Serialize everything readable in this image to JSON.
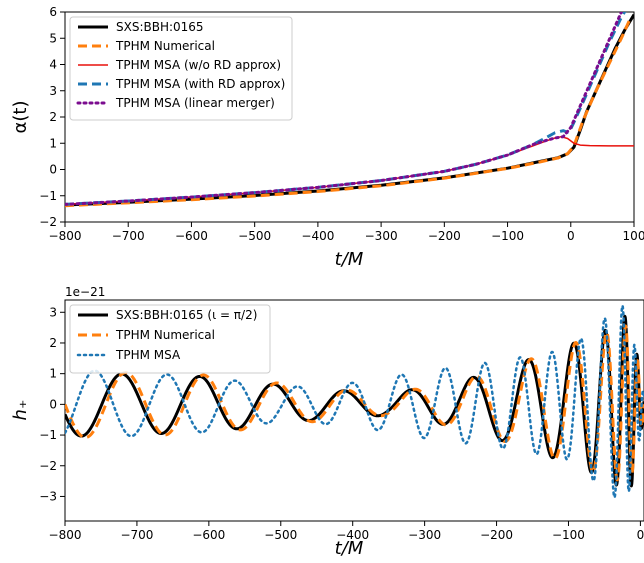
{
  "chart_data": [
    {
      "type": "line",
      "xlabel": "t/M",
      "ylabel": "α(t)",
      "xlim": [
        -800,
        100
      ],
      "ylim": [
        -2,
        6
      ],
      "xticks": [
        -800,
        -700,
        -600,
        -500,
        -400,
        -300,
        -200,
        -100,
        0,
        100
      ],
      "xtick_labels": [
        "−800",
        "−700",
        "−600",
        "−500",
        "−400",
        "−300",
        "−200",
        "−100",
        "0",
        "100"
      ],
      "yticks": [
        -2,
        -1,
        0,
        1,
        2,
        3,
        4,
        5,
        6
      ],
      "ytick_labels": [
        "−2",
        "−1",
        "0",
        "1",
        "2",
        "3",
        "4",
        "5",
        "6"
      ],
      "legend_position": "upper-left",
      "series": [
        {
          "name": "SXS:BBH:0165",
          "color": "#000000",
          "style": "solid",
          "width": 3,
          "points": [
            [
              -800,
              -1.35
            ],
            [
              -700,
              -1.25
            ],
            [
              -600,
              -1.13
            ],
            [
              -500,
              -0.99
            ],
            [
              -400,
              -0.82
            ],
            [
              -300,
              -0.6
            ],
            [
              -200,
              -0.32
            ],
            [
              -100,
              0.05
            ],
            [
              -50,
              0.3
            ],
            [
              -20,
              0.45
            ],
            [
              -5,
              0.6
            ],
            [
              5,
              0.85
            ],
            [
              15,
              1.5
            ],
            [
              25,
              2.2
            ],
            [
              40,
              3.0
            ],
            [
              55,
              3.8
            ],
            [
              70,
              4.6
            ],
            [
              85,
              5.3
            ],
            [
              100,
              5.9
            ]
          ]
        },
        {
          "name": "TPHM Numerical",
          "color": "#ff7f0e",
          "style": "dashed",
          "width": 3,
          "points": [
            [
              -800,
              -1.38
            ],
            [
              -700,
              -1.27
            ],
            [
              -600,
              -1.15
            ],
            [
              -500,
              -1.01
            ],
            [
              -400,
              -0.84
            ],
            [
              -300,
              -0.62
            ],
            [
              -200,
              -0.33
            ],
            [
              -100,
              0.04
            ],
            [
              -50,
              0.28
            ],
            [
              -20,
              0.44
            ],
            [
              -5,
              0.6
            ],
            [
              5,
              0.9
            ],
            [
              20,
              1.9
            ],
            [
              40,
              3.0
            ],
            [
              60,
              4.0
            ],
            [
              80,
              5.0
            ],
            [
              95,
              5.8
            ]
          ]
        },
        {
          "name": "TPHM MSA (w/o RD approx)",
          "color": "#e8110c",
          "style": "solid",
          "width": 1.5,
          "points": [
            [
              -800,
              -1.33
            ],
            [
              -700,
              -1.2
            ],
            [
              -600,
              -1.05
            ],
            [
              -500,
              -0.88
            ],
            [
              -400,
              -0.68
            ],
            [
              -300,
              -0.42
            ],
            [
              -200,
              -0.07
            ],
            [
              -150,
              0.2
            ],
            [
              -100,
              0.55
            ],
            [
              -60,
              0.9
            ],
            [
              -40,
              1.08
            ],
            [
              -25,
              1.2
            ],
            [
              -15,
              1.25
            ],
            [
              -5,
              1.18
            ],
            [
              5,
              1.0
            ],
            [
              15,
              0.93
            ],
            [
              30,
              0.91
            ],
            [
              60,
              0.9
            ],
            [
              100,
              0.9
            ]
          ]
        },
        {
          "name": "TPHM MSA (with RD approx)",
          "color": "#1f77b4",
          "style": "dashed",
          "width": 3,
          "points": [
            [
              -800,
              -1.33
            ],
            [
              -700,
              -1.2
            ],
            [
              -600,
              -1.05
            ],
            [
              -500,
              -0.88
            ],
            [
              -400,
              -0.68
            ],
            [
              -300,
              -0.42
            ],
            [
              -200,
              -0.07
            ],
            [
              -150,
              0.2
            ],
            [
              -100,
              0.55
            ],
            [
              -60,
              0.95
            ],
            [
              -40,
              1.2
            ],
            [
              -25,
              1.4
            ],
            [
              -12,
              1.48
            ],
            [
              -3,
              1.4
            ],
            [
              5,
              1.8
            ],
            [
              20,
              2.6
            ],
            [
              40,
              3.7
            ],
            [
              60,
              4.8
            ],
            [
              80,
              5.8
            ],
            [
              90,
              6.2
            ]
          ]
        },
        {
          "name": "TPHM MSA (linear merger)",
          "color": "#7b0c8f",
          "style": "dotted",
          "width": 3,
          "points": [
            [
              -800,
              -1.33
            ],
            [
              -700,
              -1.2
            ],
            [
              -600,
              -1.05
            ],
            [
              -500,
              -0.88
            ],
            [
              -400,
              -0.68
            ],
            [
              -300,
              -0.42
            ],
            [
              -200,
              -0.07
            ],
            [
              -150,
              0.2
            ],
            [
              -100,
              0.55
            ],
            [
              -60,
              0.95
            ],
            [
              -40,
              1.1
            ],
            [
              -25,
              1.2
            ],
            [
              -12,
              1.25
            ],
            [
              0,
              1.6
            ],
            [
              20,
              2.7
            ],
            [
              40,
              3.8
            ],
            [
              60,
              4.9
            ],
            [
              80,
              6.0
            ]
          ]
        }
      ]
    },
    {
      "type": "line",
      "xlabel": "t/M",
      "ylabel": "h₊",
      "offset_label": "1e−21",
      "xlim": [
        -800,
        5
      ],
      "ylim": [
        -3.8,
        3.4
      ],
      "xticks": [
        -800,
        -700,
        -600,
        -500,
        -400,
        -300,
        -200,
        -100,
        0
      ],
      "xtick_labels": [
        "−800",
        "−700",
        "−600",
        "−500",
        "−400",
        "−300",
        "−200",
        "−100",
        "0"
      ],
      "yticks": [
        -3,
        -2,
        -1,
        0,
        1,
        2,
        3
      ],
      "ytick_labels": [
        "−3",
        "−2",
        "−1",
        "0",
        "1",
        "2",
        "3"
      ],
      "legend_position": "upper-left",
      "series": [
        {
          "name": "SXS:BBH:0165 (ι = π/2)",
          "color": "#000000",
          "style": "solid",
          "width": 3,
          "wave": {
            "amp": [
              [
                -800,
                1.05
              ],
              [
                -600,
                0.9
              ],
              [
                -450,
                0.5
              ],
              [
                -350,
                0.35
              ],
              [
                -250,
                0.75
              ],
              [
                -150,
                1.5
              ],
              [
                -80,
                2.1
              ],
              [
                -40,
                2.5
              ],
              [
                -15,
                3.0
              ],
              [
                0,
                1.0
              ],
              [
                5,
                0.3
              ]
            ],
            "period": [
              [
                -800,
                115
              ],
              [
                -400,
                95
              ],
              [
                -200,
                80
              ],
              [
                -100,
                58
              ],
              [
                -50,
                35
              ],
              [
                -20,
                20
              ],
              [
                0,
                12
              ],
              [
                5,
                10
              ]
            ],
            "phase0": 0.3
          }
        },
        {
          "name": "TPHM Numerical",
          "color": "#ff7f0e",
          "style": "dashed",
          "width": 3,
          "wave": {
            "amp": [
              [
                -800,
                1.1
              ],
              [
                -600,
                0.95
              ],
              [
                -450,
                0.55
              ],
              [
                -350,
                0.35
              ],
              [
                -250,
                0.75
              ],
              [
                -150,
                1.5
              ],
              [
                -80,
                2.1
              ],
              [
                -40,
                2.4
              ],
              [
                -15,
                2.6
              ],
              [
                0,
                1.0
              ],
              [
                5,
                0.3
              ]
            ],
            "period": [
              [
                -800,
                115
              ],
              [
                -400,
                95
              ],
              [
                -200,
                80
              ],
              [
                -100,
                58
              ],
              [
                -50,
                35
              ],
              [
                -20,
                20
              ],
              [
                0,
                12
              ],
              [
                5,
                10
              ]
            ],
            "phase0": 0.25
          }
        },
        {
          "name": "TPHM MSA",
          "color": "#1f77b4",
          "style": "dotted",
          "width": 2.5,
          "wave": {
            "amp": [
              [
                -800,
                1.15
              ],
              [
                -600,
                0.9
              ],
              [
                -500,
                0.55
              ],
              [
                -400,
                0.7
              ],
              [
                -300,
                1.1
              ],
              [
                -200,
                1.4
              ],
              [
                -100,
                1.8
              ],
              [
                -50,
                2.8
              ],
              [
                -20,
                3.3
              ],
              [
                0,
                1.0
              ],
              [
                5,
                0.3
              ]
            ],
            "period": [
              [
                -800,
                105
              ],
              [
                -600,
                95
              ],
              [
                -400,
                72
              ],
              [
                -200,
                50
              ],
              [
                -100,
                40
              ],
              [
                -50,
                30
              ],
              [
                -20,
                18
              ],
              [
                0,
                12
              ],
              [
                5,
                10
              ]
            ],
            "phase0": 0.6
          }
        }
      ]
    }
  ]
}
